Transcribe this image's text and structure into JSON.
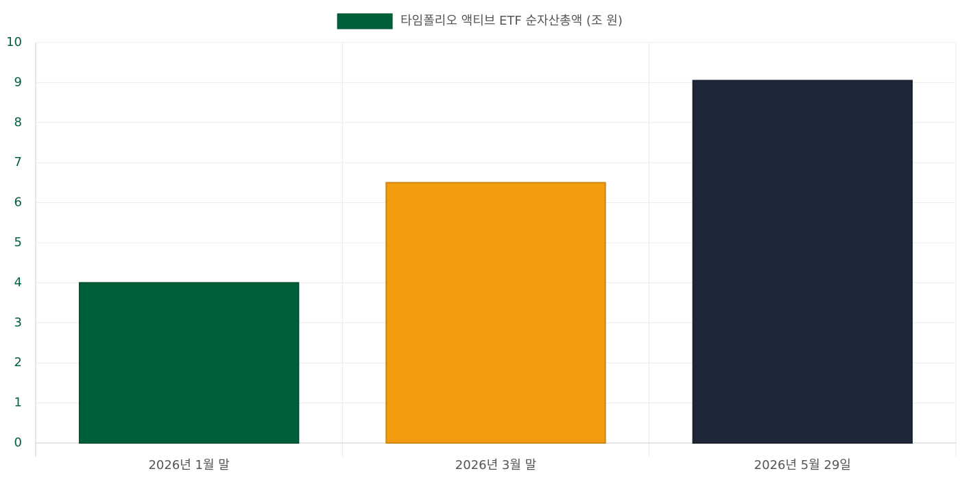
{
  "chart_data": {
    "type": "bar",
    "categories": [
      "2026년 1월 말",
      "2026년 3월 말",
      "2026년 5월 29일"
    ],
    "series": [
      {
        "name": "타임폴리오 액티브 ETF 순자산총액 (조 원)",
        "colors": [
          "#006039",
          "#f39c0f",
          "#1e2738"
        ],
        "values": [
          4.0,
          6.5,
          9.05
        ]
      }
    ],
    "ylim": [
      0,
      10
    ],
    "yticks": [
      0,
      1,
      2,
      3,
      4,
      5,
      6,
      7,
      8,
      9,
      10
    ],
    "grid": true,
    "legend": "top"
  }
}
